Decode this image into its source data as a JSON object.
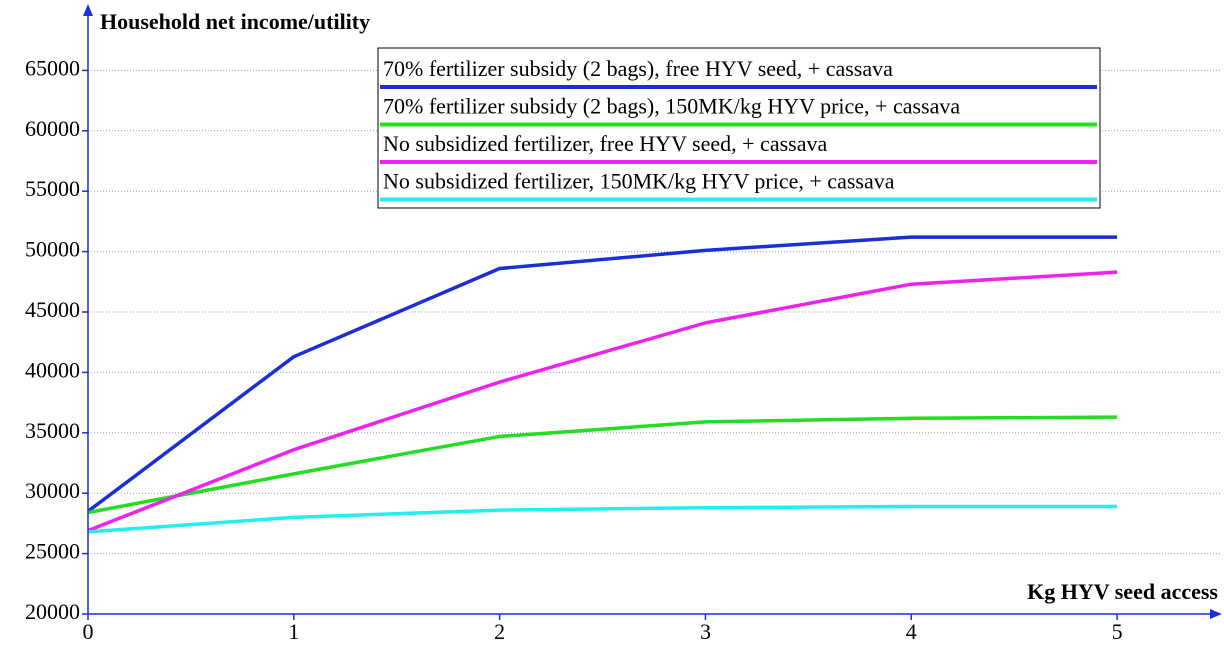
{
  "chart_data": {
    "type": "line",
    "title": "Household net income/utility",
    "x_label": "Kg HYV seed access",
    "x": [
      0,
      1,
      2,
      3,
      4,
      5
    ],
    "xlim": [
      0,
      5.5
    ],
    "xticks": [
      0,
      1,
      2,
      3,
      4,
      5
    ],
    "ylim": [
      20000,
      70000
    ],
    "yticks": [
      20000,
      25000,
      30000,
      35000,
      40000,
      45000,
      50000,
      55000,
      60000,
      65000
    ],
    "grid": true,
    "legend": "top-right",
    "series": [
      {
        "name": "70% fertilizer subsidy (2 bags), free HYV seed, + cassava",
        "color": "#1a2fd6",
        "values": [
          28500,
          41300,
          48600,
          50100,
          51200,
          51200
        ]
      },
      {
        "name": "70% fertilizer subsidy (2 bags), 150MK/kg HYV price, + cassava",
        "color": "#22dd22",
        "values": [
          28400,
          31600,
          34700,
          35900,
          36200,
          36300
        ]
      },
      {
        "name": "No subsidized fertilizer, free HYV seed, + cassava",
        "color": "#ee22ee",
        "values": [
          26900,
          33600,
          39200,
          44100,
          47300,
          48300
        ]
      },
      {
        "name": "No subsidized fertilizer, 150MK/kg HYV price, + cassava",
        "color": "#22eeee",
        "values": [
          26800,
          28000,
          28600,
          28800,
          28900,
          28900
        ]
      }
    ]
  }
}
